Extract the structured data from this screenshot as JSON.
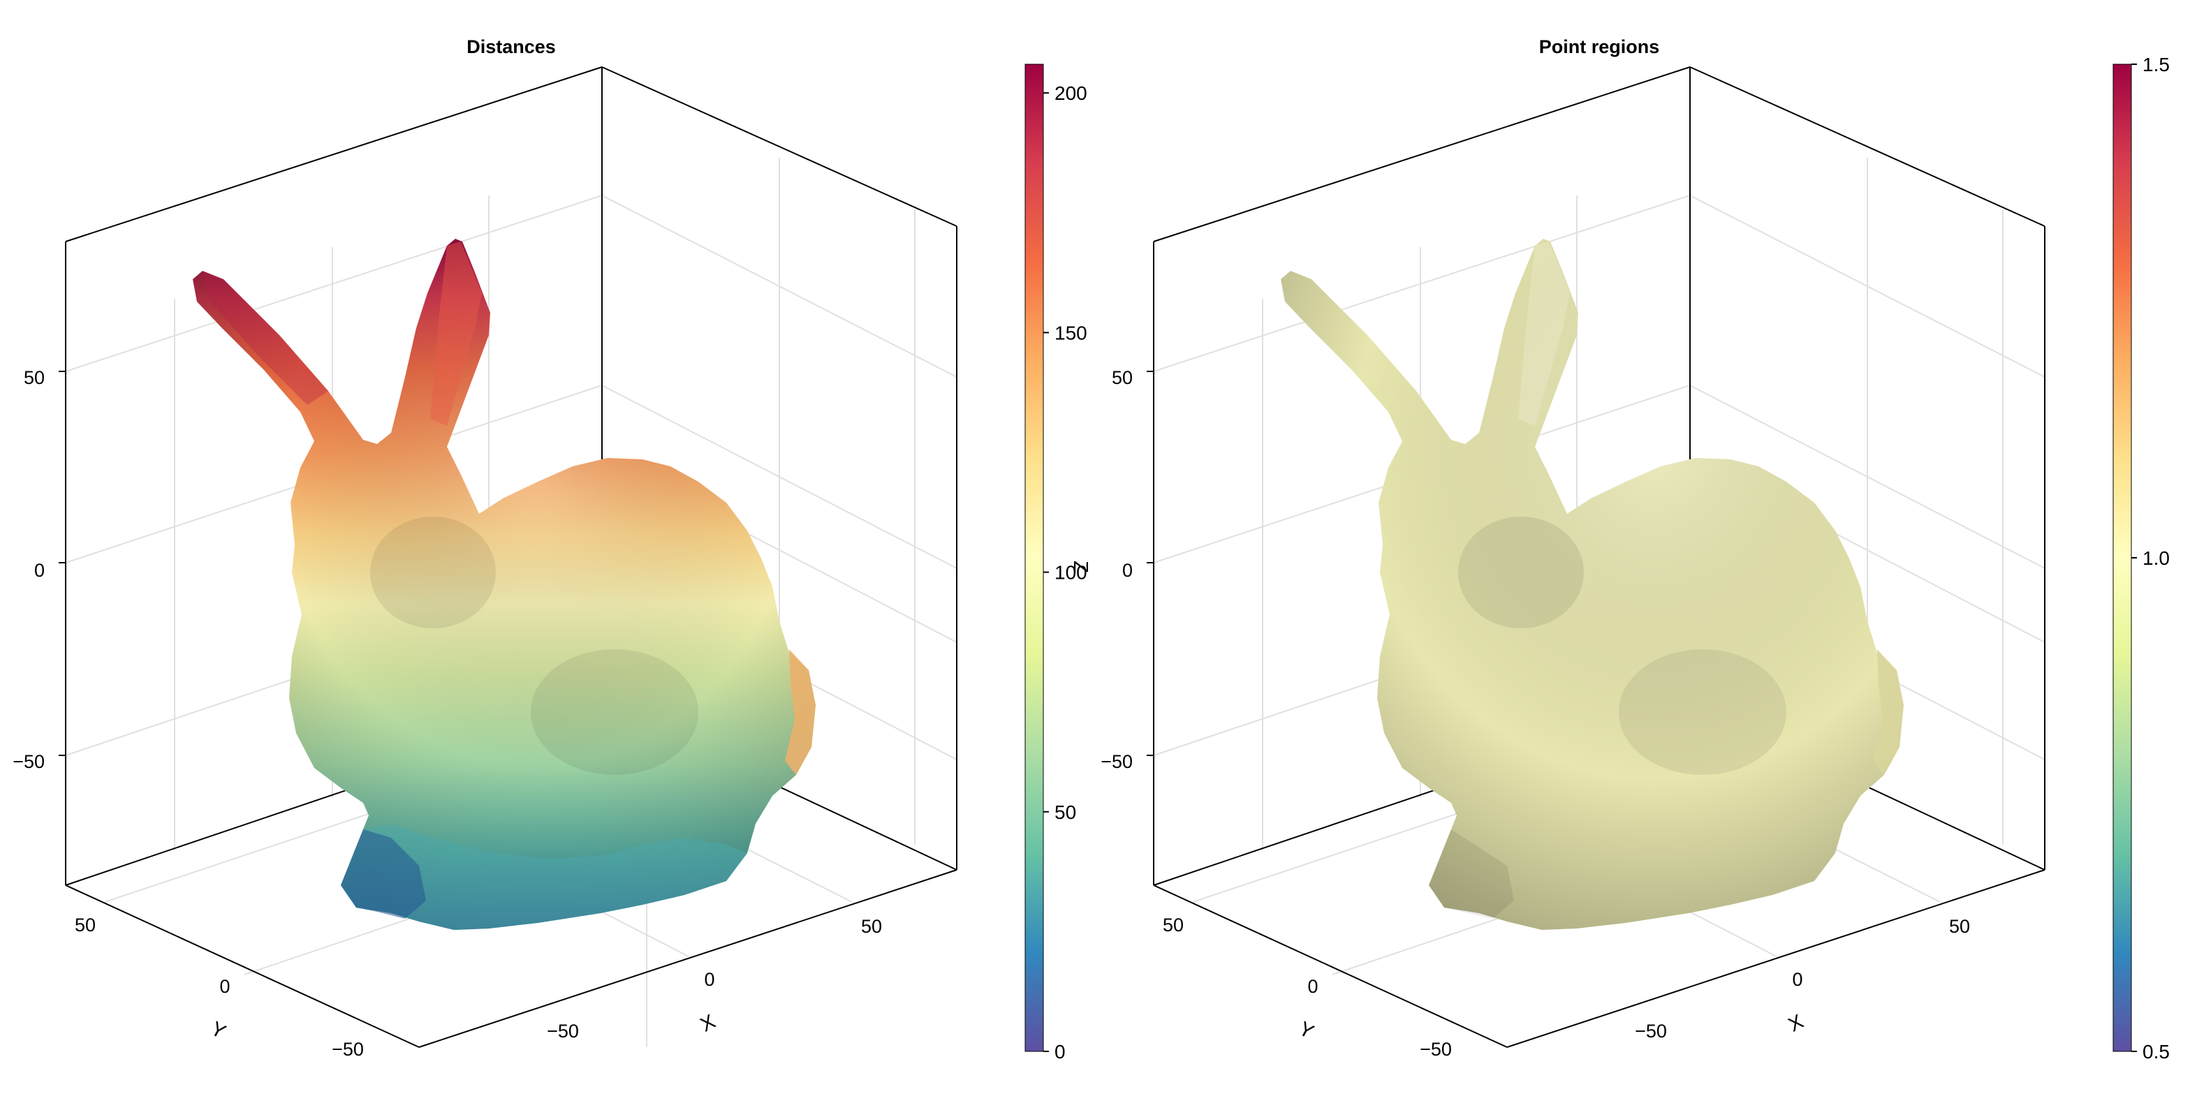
{
  "chart_data": [
    {
      "type": "surface3d",
      "title": "Distances",
      "xlabel": "X",
      "ylabel": "Y",
      "zlabel": "Z",
      "x_ticks": [
        -50,
        0,
        50
      ],
      "y_ticks": [
        50,
        0,
        -50
      ],
      "z_ticks": [
        50,
        0,
        -50
      ],
      "x_tick_labels": [
        "−50",
        "0",
        "50"
      ],
      "y_tick_labels": [
        "50",
        "0",
        "−50"
      ],
      "z_tick_labels": [
        "50",
        "0",
        "−50"
      ],
      "colorbar": {
        "colormap": "Spectral (reversed)",
        "range": [
          0,
          206
        ],
        "ticks": [
          0,
          50,
          100,
          150,
          200
        ],
        "tick_labels": [
          "0",
          "50",
          "100",
          "150",
          "200"
        ]
      },
      "coloring": "distance from lower front of the bunny: low (blue) at the front paws, high (dark red) at ear tips"
    },
    {
      "type": "surface3d",
      "title": "Point regions",
      "xlabel": "X",
      "ylabel": "Y",
      "x_ticks": [
        -50,
        0,
        50
      ],
      "y_ticks": [
        50,
        0,
        -50
      ],
      "z_ticks": [
        50,
        0,
        -50
      ],
      "x_tick_labels": [
        "−50",
        "0",
        "50"
      ],
      "y_tick_labels": [
        "50",
        "0",
        "−50"
      ],
      "z_tick_labels": [
        "50",
        "0",
        "−50"
      ],
      "colorbar": {
        "colormap": "Spectral (reversed)",
        "range": [
          0.5,
          1.5
        ],
        "ticks": [
          0.5,
          1.0,
          1.5
        ],
        "tick_labels": [
          "0.5",
          "1.0",
          "1.5"
        ]
      },
      "coloring": "uniform value 1.0 across the whole surface"
    }
  ],
  "colors": {
    "spectral_stops": [
      "#5e4fa2",
      "#3288bd",
      "#66c2a5",
      "#abdda4",
      "#e6f598",
      "#ffffbf",
      "#fee08b",
      "#fdae61",
      "#f46d43",
      "#d53e4f",
      "#9e0142"
    ],
    "uniform_surface": "#e7e6ae"
  }
}
